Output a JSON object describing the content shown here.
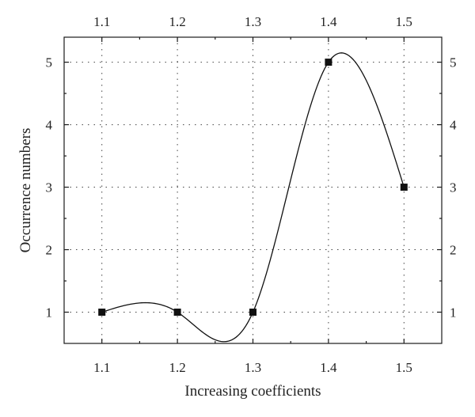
{
  "chart_data": {
    "type": "line",
    "title": "",
    "xlabel": "Increasing coefficients",
    "ylabel": "Occurrence numbers",
    "x": [
      1.1,
      1.2,
      1.3,
      1.4,
      1.5
    ],
    "series": [
      {
        "values": [
          1,
          1,
          1,
          5,
          3
        ]
      }
    ],
    "xlim": [
      1.05,
      1.55
    ],
    "ylim": [
      0.5,
      5.4
    ],
    "x_ticks": [
      "1.1",
      "1.2",
      "1.3",
      "1.4",
      "1.5"
    ],
    "y_ticks": [
      "1",
      "2",
      "3",
      "4",
      "5"
    ],
    "grid": true,
    "smoothed": true,
    "marker": "square",
    "mirrored_axes": true
  }
}
